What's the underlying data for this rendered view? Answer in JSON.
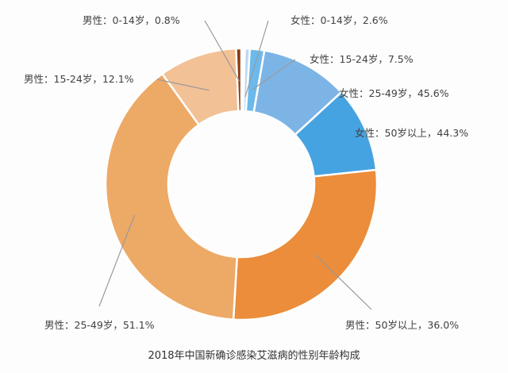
{
  "chart_data": {
    "type": "pie",
    "variant": "donut",
    "title": "2018年中国新确诊感染艾滋病的性别年龄构成",
    "group_share": {
      "female": 0.23,
      "male": 0.77
    },
    "slices": [
      {
        "group": "female",
        "label": "女性：0-14岁，2.6%",
        "value": 2.6,
        "color": "#bcd9f2"
      },
      {
        "group": "female",
        "label": "女性：15-24岁，7.5%",
        "value": 7.5,
        "color": "#6cb9ec"
      },
      {
        "group": "female",
        "label": "女性：25-49岁，45.6%",
        "value": 45.6,
        "color": "#7db4e6"
      },
      {
        "group": "female",
        "label": "女性：50岁以上，44.3%",
        "value": 44.3,
        "color": "#46a3e1"
      },
      {
        "group": "male",
        "label": "男性：50岁以上，36.0%",
        "value": 36.0,
        "color": "#eb8d3a"
      },
      {
        "group": "male",
        "label": "男性：25-49岁，51.1%",
        "value": 51.1,
        "color": "#eda966"
      },
      {
        "group": "male",
        "label": "男性：15-24岁，12.1%",
        "value": 12.1,
        "color": "#f3c196"
      },
      {
        "group": "male",
        "label": "男性：0-14岁，0.8%",
        "value": 0.8,
        "color": "#8b3a12"
      }
    ]
  }
}
